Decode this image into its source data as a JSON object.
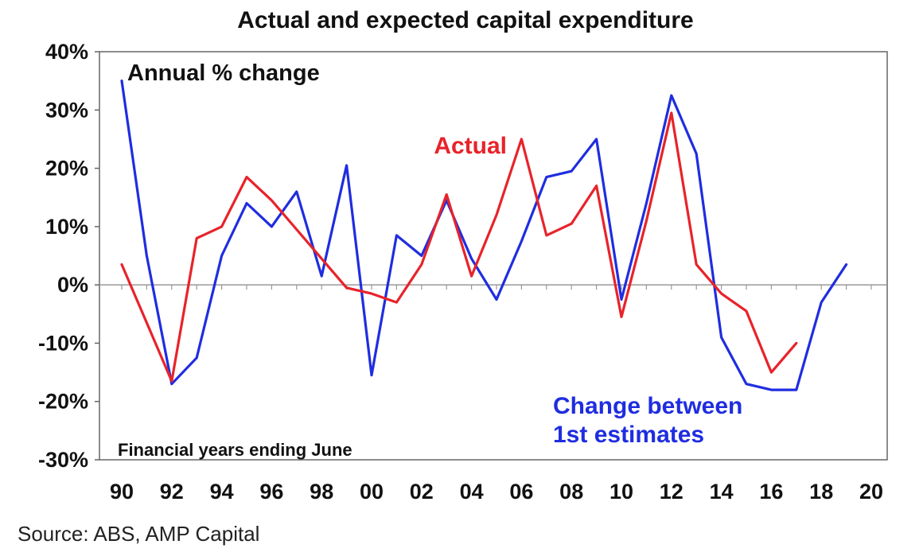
{
  "chart_data": {
    "type": "line",
    "title": "Actual and expected capital expenditure",
    "subtitle": "Annual % change",
    "note": "Financial years ending June",
    "source": "Source: ABS, AMP Capital",
    "ylim": [
      -30,
      40
    ],
    "y_ticks": [
      40,
      30,
      20,
      10,
      0,
      -10,
      -20,
      -30
    ],
    "y_tick_labels": [
      "40%",
      "30%",
      "20%",
      "10%",
      "0%",
      "-10%",
      "-20%",
      "-30%"
    ],
    "xlim": [
      1990,
      2020
    ],
    "x_ticks": [
      1990,
      1992,
      1994,
      1996,
      1998,
      2000,
      2002,
      2004,
      2006,
      2008,
      2010,
      2012,
      2014,
      2016,
      2018,
      2020
    ],
    "x_tick_labels": [
      "90",
      "92",
      "94",
      "96",
      "98",
      "00",
      "02",
      "04",
      "06",
      "08",
      "10",
      "12",
      "14",
      "16",
      "18",
      "20"
    ],
    "grid": false,
    "colors": {
      "actual": "#e8232a",
      "estimates": "#1f2de0",
      "axis": "#666666",
      "zero_line": "#999999"
    },
    "series": [
      {
        "name": "Actual",
        "label_lines": [
          "Actual"
        ],
        "color": "#e8232a",
        "x": [
          1990,
          1991,
          1992,
          1993,
          1994,
          1995,
          1996,
          1997,
          1998,
          1999,
          2000,
          2001,
          2002,
          2003,
          2004,
          2005,
          2006,
          2007,
          2008,
          2009,
          2010,
          2011,
          2012,
          2013,
          2014,
          2015,
          2016,
          2017
        ],
        "y": [
          3.5,
          -6.5,
          -16.5,
          8,
          10,
          18.5,
          14.5,
          9.5,
          4.5,
          -0.5,
          -1.5,
          -3,
          3.5,
          15.5,
          1.5,
          12,
          25,
          8.5,
          10.5,
          17,
          -5.5,
          11,
          29.5,
          3.5,
          -1.5,
          -4.5,
          -15,
          -10
        ]
      },
      {
        "name": "Change between 1st estimates",
        "label_lines": [
          "Change between",
          "1st estimates"
        ],
        "color": "#1f2de0",
        "x": [
          1990,
          1991,
          1992,
          1993,
          1994,
          1995,
          1996,
          1997,
          1998,
          1999,
          2000,
          2001,
          2002,
          2003,
          2004,
          2005,
          2006,
          2007,
          2008,
          2009,
          2010,
          2011,
          2012,
          2013,
          2014,
          2015,
          2016,
          2017,
          2018,
          2019
        ],
        "y": [
          35,
          5,
          -17,
          -12.5,
          5,
          14,
          10,
          16,
          1.5,
          20.5,
          -15.5,
          8.5,
          5,
          14.5,
          4.5,
          -2.5,
          7.5,
          18.5,
          19.5,
          25,
          -2.5,
          14,
          32.5,
          22.5,
          -9,
          -17,
          -18,
          -18,
          -3,
          3.5
        ]
      }
    ]
  }
}
